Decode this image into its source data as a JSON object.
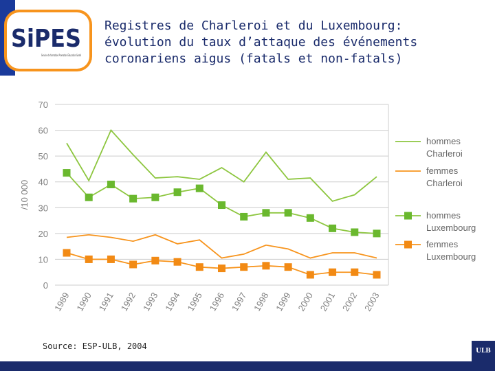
{
  "logo": {
    "name": "SiPES",
    "tagline": "Service de formation Promotion Éducation Santé"
  },
  "title_lines": [
    "Registres de Charleroi et du Luxembourg:",
    "évolution du taux d’attaque des événements",
    "coronariens aigus (fatals et non-fatals)"
  ],
  "source": "Source: ESP-ULB, 2004",
  "ulb_label": "ULB",
  "colors": {
    "green": "#8dc63f",
    "green_marker": "#6ab82e",
    "orange": "#f7941d",
    "orange_marker": "#f28a14",
    "navy": "#1a2b6b",
    "grid": "#cccccc",
    "axis_text": "#808080"
  },
  "chart_data": {
    "type": "line",
    "title": "",
    "xlabel": "",
    "ylabel": "/10 000",
    "ylim": [
      0,
      70
    ],
    "yticks": [
      0,
      10,
      20,
      30,
      40,
      50,
      60,
      70
    ],
    "categories": [
      "1989",
      "1990",
      "1991",
      "1992",
      "1993",
      "1994",
      "1995",
      "1996",
      "1997",
      "1998",
      "1999",
      "2000",
      "2001",
      "2002",
      "2003"
    ],
    "series": [
      {
        "name": "hommes Charleroi",
        "legend": [
          "hommes",
          "Charleroi"
        ],
        "color": "#8dc63f",
        "marker": false,
        "values": [
          55,
          40.5,
          60,
          50.5,
          41.5,
          42,
          41,
          45.5,
          40,
          51.5,
          41,
          41.5,
          32.5,
          35,
          42
        ]
      },
      {
        "name": "femmes Charleroi",
        "legend": [
          "femmes",
          "Charleroi"
        ],
        "color": "#f7941d",
        "marker": false,
        "values": [
          18.5,
          19.5,
          18.5,
          17,
          19.5,
          16,
          17.5,
          10.5,
          12,
          15.5,
          14,
          10.5,
          12.5,
          12.5,
          10.5
        ]
      },
      {
        "name": "hommes Luxembourg",
        "legend": [
          "hommes",
          "Luxembourg"
        ],
        "color": "#8dc63f",
        "marker": true,
        "values": [
          43.5,
          34,
          39,
          33.5,
          34,
          36,
          37.5,
          31,
          26.5,
          28,
          28,
          26,
          22,
          20.5,
          20
        ]
      },
      {
        "name": "femmes Luxembourg",
        "legend": [
          "femmes",
          "Luxembourg"
        ],
        "color": "#f7941d",
        "marker": true,
        "values": [
          12.5,
          10,
          10,
          8,
          9.5,
          9,
          7,
          6.5,
          7,
          7.5,
          7,
          4,
          5,
          5,
          4
        ]
      }
    ]
  }
}
